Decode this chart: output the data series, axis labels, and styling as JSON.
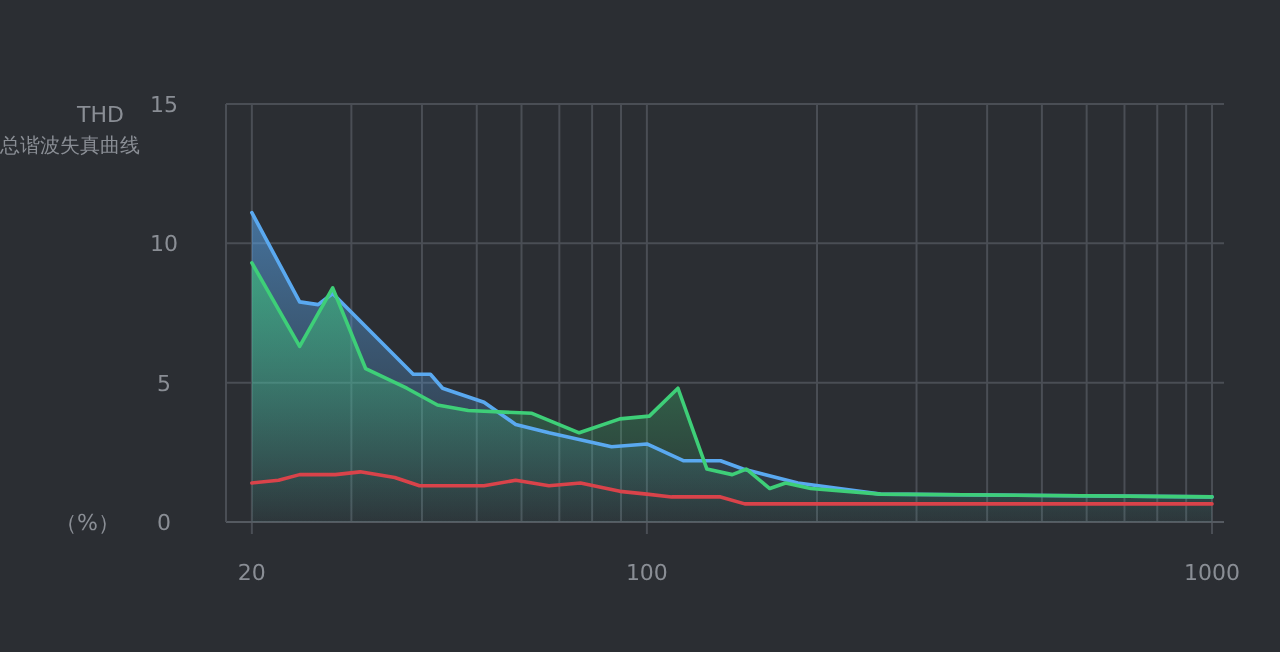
{
  "chart_data": {
    "type": "area",
    "title": "THD",
    "subtitle": "总谐波失真曲线",
    "ylabel": "（%）",
    "log": "x",
    "grid": true,
    "xlim": [
      18,
      1050
    ],
    "ylim": [
      0,
      15
    ],
    "xticks": [
      20,
      {
        "value": 30,
        "label": null
      },
      {
        "value": 40,
        "label": null
      },
      {
        "value": 50,
        "label": null
      },
      {
        "value": 60,
        "label": null
      },
      {
        "value": 70,
        "label": null
      },
      {
        "value": 80,
        "label": null
      },
      {
        "value": 90,
        "label": null
      },
      100,
      {
        "value": 200,
        "label": null
      },
      {
        "value": 300,
        "label": null
      },
      {
        "value": 400,
        "label": null
      },
      {
        "value": 500,
        "label": null
      },
      {
        "value": 600,
        "label": null
      },
      {
        "value": 700,
        "label": null
      },
      {
        "value": 800,
        "label": null
      },
      {
        "value": 900,
        "label": null
      },
      1000
    ],
    "yticks": [
      0,
      5,
      10,
      15
    ],
    "series": [
      {
        "color": "#5aa9f0",
        "x": [
          20,
          24.3,
          26.2,
          27.8,
          38.6,
          41.4,
          43.5,
          51.5,
          58.6,
          67.1,
          86.6,
          100,
          116,
          135,
          148,
          185,
          259,
          1000
        ],
        "values": [
          11.1,
          7.9,
          7.8,
          8.2,
          5.3,
          5.3,
          4.8,
          4.3,
          3.5,
          3.2,
          2.7,
          2.8,
          2.2,
          2.2,
          1.9,
          1.4,
          1.0,
          0.9
        ]
      },
      {
        "color": "#3ecf78",
        "x": [
          20,
          24.3,
          27.8,
          31.8,
          37.6,
          42.6,
          48.3,
          62.6,
          75.9,
          89.6,
          101,
          113.5,
          127.7,
          141.6,
          150,
          165,
          176,
          195,
          259,
          1000
        ],
        "values": [
          9.3,
          6.3,
          8.4,
          5.5,
          4.8,
          4.2,
          4.0,
          3.9,
          3.2,
          3.7,
          3.8,
          4.8,
          1.9,
          1.7,
          1.9,
          1.2,
          1.4,
          1.2,
          1.0,
          0.9
        ]
      },
      {
        "type": "line",
        "color": "#d9434a",
        "x": [
          20,
          22.3,
          24.3,
          28.1,
          31.1,
          35.8,
          39.6,
          51.5,
          58.6,
          67.1,
          76.3,
          89.6,
          100,
          110.6,
          135,
          149,
          1000
        ],
        "values": [
          1.4,
          1.5,
          1.7,
          1.7,
          1.8,
          1.6,
          1.3,
          1.3,
          1.5,
          1.3,
          1.4,
          1.1,
          1.0,
          0.9,
          0.9,
          0.65,
          0.65
        ]
      }
    ]
  }
}
